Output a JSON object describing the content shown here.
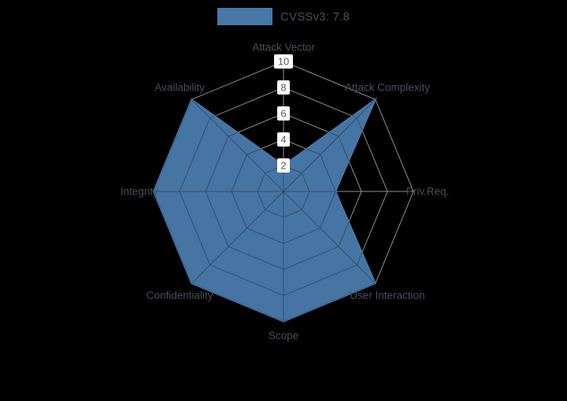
{
  "background": "#000000",
  "legend": {
    "label": "CVSSv3: 7.8",
    "swatch_color": "#4878A8"
  },
  "chart_data": {
    "type": "radar",
    "title": "CVSSv3: 7.8",
    "categories": [
      "Attack Vector",
      "Attack Complexity",
      "Priv.Req.",
      "User Interaction",
      "Scope",
      "Confidentiality",
      "Integrity",
      "Availability"
    ],
    "series": [
      {
        "name": "CVSSv3: 7.8",
        "values": [
          2,
          10,
          4,
          10,
          10,
          10,
          10,
          10
        ]
      }
    ],
    "ticks": [
      2,
      4,
      6,
      8,
      10
    ],
    "rmax": 10,
    "legend_position": "top",
    "grid": true,
    "grid_color": "#8f8f8f",
    "inner_grid_color": "#30506f",
    "fill_color": "#4878A8",
    "tick_text_color": "#5a5a5a",
    "tick_box_color": "#ffffff",
    "label_color": "#4a4f57"
  }
}
